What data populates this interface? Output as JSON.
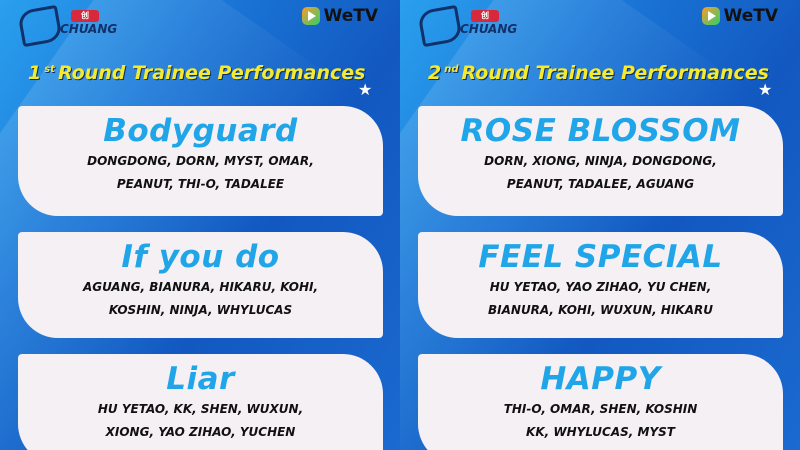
{
  "brand": {
    "show_badge": "创",
    "show_name": "CHUANG",
    "platform": "WeTV"
  },
  "posters": [
    {
      "round_num": "1",
      "round_suffix": "st",
      "title": "Round Trainee Performances",
      "songs": [
        {
          "title": "Bodyguard",
          "lines": [
            "DONGDONG, DORN, MYST, OMAR,",
            "PEANUT, THI-O, TADALEE"
          ]
        },
        {
          "title": "If you do",
          "lines": [
            "AGUANG, BIANURA, HIKARU, KOHI,",
            "KOSHIN, NINJA, WHYLUCAS"
          ]
        },
        {
          "title": "Liar",
          "lines": [
            "HU YETAO, KK, SHEN, WUXUN,",
            "XIONG, YAO ZIHAO, YUCHEN"
          ]
        }
      ]
    },
    {
      "round_num": "2",
      "round_suffix": "nd",
      "title": "Round Trainee Performances",
      "songs": [
        {
          "title": "ROSE BLOSSOM",
          "lines": [
            "DORN, XIONG, NINJA, DONGDONG,",
            "PEANUT, TADALEE, AGUANG"
          ]
        },
        {
          "title": "FEEL SPECIAL",
          "lines": [
            "HU YETAO, YAO ZIHAO, YU CHEN,",
            "BIANURA, KOHI, WUXUN, HIKARU"
          ]
        },
        {
          "title": "HAPPY",
          "lines": [
            "THI-O, OMAR, SHEN, KOSHIN",
            "KK, WHYLUCAS, MYST"
          ]
        }
      ]
    }
  ]
}
